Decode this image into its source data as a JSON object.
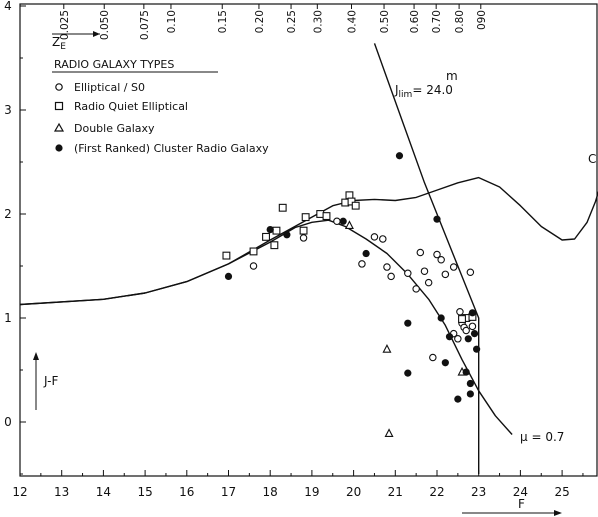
{
  "chart_data": {
    "type": "scatter",
    "xlabel": "F",
    "ylabel": "J-F",
    "xlim": [
      12,
      26
    ],
    "ylim": [
      -0.5,
      4
    ],
    "x_ticks": [
      "12",
      "13",
      "14",
      "15",
      "16",
      "17",
      "18",
      "19",
      "20",
      "21",
      "22",
      "23",
      "24",
      "25"
    ],
    "y_ticks": [
      "0",
      "1",
      "2",
      "3",
      "4"
    ],
    "top_axis": {
      "label": "Z",
      "label_sub": "E",
      "ticks": [
        {
          "label": "0.025",
          "f": 13.05
        },
        {
          "label": "0.050",
          "f": 14.02
        },
        {
          "label": "0.075",
          "f": 14.97
        },
        {
          "label": "0.10",
          "f": 15.62
        },
        {
          "label": "0.15",
          "f": 16.85
        },
        {
          "label": "0.20",
          "f": 17.73
        },
        {
          "label": "0.25",
          "f": 18.5
        },
        {
          "label": "0.30",
          "f": 19.13
        },
        {
          "label": "0.40",
          "f": 19.95
        },
        {
          "label": "0.50",
          "f": 20.73
        },
        {
          "label": "0.60",
          "f": 21.45
        },
        {
          "label": "0.70",
          "f": 21.98
        },
        {
          "label": "0.80",
          "f": 22.53
        },
        {
          "label": "090",
          "f": 23.05
        }
      ]
    },
    "legend": {
      "title": "RADIO GALAXY TYPES",
      "entries": [
        {
          "symbol": "open-circle",
          "label": "Elliptical / S0"
        },
        {
          "symbol": "open-square",
          "label": "Radio Quiet Elliptical"
        },
        {
          "symbol": "open-triangle",
          "label": "Double Galaxy"
        },
        {
          "symbol": "filled-circle",
          "label": "(First Ranked) Cluster Radio Galaxy"
        }
      ]
    },
    "annotations": {
      "jlim_main": "J",
      "jlim_sub": "lim",
      "jlim_value": "= 24.0",
      "jlim_sup": "m",
      "c_label": "C",
      "mu_label": "μ = 0.7"
    },
    "series": [
      {
        "name": "Elliptical / S0",
        "symbol": "open-circle",
        "points": [
          [
            17.6,
            1.5
          ],
          [
            18.8,
            1.77
          ],
          [
            19.6,
            1.93
          ],
          [
            20.2,
            1.52
          ],
          [
            20.5,
            1.78
          ],
          [
            20.7,
            1.76
          ],
          [
            20.8,
            1.49
          ],
          [
            20.9,
            1.4
          ],
          [
            21.3,
            1.43
          ],
          [
            21.5,
            1.28
          ],
          [
            21.6,
            1.63
          ],
          [
            21.7,
            1.45
          ],
          [
            21.8,
            1.34
          ],
          [
            21.9,
            0.62
          ],
          [
            22.0,
            1.61
          ],
          [
            22.1,
            1.56
          ],
          [
            22.2,
            1.42
          ],
          [
            22.4,
            1.49
          ],
          [
            22.4,
            0.85
          ],
          [
            22.5,
            0.8
          ],
          [
            22.55,
            1.06
          ],
          [
            22.6,
            0.95
          ],
          [
            22.65,
            0.91
          ],
          [
            22.7,
            0.88
          ],
          [
            22.8,
            1.44
          ],
          [
            22.75,
            1.0
          ],
          [
            22.85,
            0.92
          ]
        ]
      },
      {
        "name": "Radio Quiet Elliptical",
        "symbol": "open-square",
        "points": [
          [
            16.95,
            1.6
          ],
          [
            17.6,
            1.64
          ],
          [
            17.9,
            1.78
          ],
          [
            18.1,
            1.7
          ],
          [
            18.15,
            1.84
          ],
          [
            18.3,
            2.06
          ],
          [
            18.8,
            1.84
          ],
          [
            18.85,
            1.97
          ],
          [
            19.2,
            2.0
          ],
          [
            19.35,
            1.98
          ],
          [
            19.8,
            2.11
          ],
          [
            19.9,
            2.18
          ],
          [
            19.95,
            2.12
          ],
          [
            20.05,
            2.08
          ],
          [
            22.7,
            1.0
          ],
          [
            22.85,
            1.01
          ],
          [
            22.6,
            0.99
          ]
        ]
      },
      {
        "name": "Double Galaxy",
        "symbol": "open-triangle",
        "points": [
          [
            19.9,
            1.89
          ],
          [
            20.8,
            0.7
          ],
          [
            20.85,
            -0.11
          ],
          [
            22.6,
            0.48
          ]
        ]
      },
      {
        "name": "(First Ranked) Cluster Radio Galaxy",
        "symbol": "filled-circle",
        "points": [
          [
            17.0,
            1.4
          ],
          [
            18.0,
            1.85
          ],
          [
            18.4,
            1.8
          ],
          [
            19.75,
            1.93
          ],
          [
            20.3,
            1.62
          ],
          [
            21.1,
            2.56
          ],
          [
            21.3,
            0.95
          ],
          [
            21.3,
            0.47
          ],
          [
            22.0,
            1.95
          ],
          [
            22.1,
            1.0
          ],
          [
            22.2,
            0.57
          ],
          [
            22.3,
            0.82
          ],
          [
            22.5,
            0.22
          ],
          [
            22.7,
            0.48
          ],
          [
            22.8,
            0.37
          ],
          [
            22.8,
            0.27
          ],
          [
            22.85,
            1.05
          ],
          [
            22.75,
            0.8
          ],
          [
            22.9,
            0.85
          ],
          [
            22.95,
            0.7
          ]
        ]
      }
    ],
    "curves": [
      {
        "name": "C",
        "points": [
          [
            12,
            1.13
          ],
          [
            14,
            1.18
          ],
          [
            15,
            1.24
          ],
          [
            16,
            1.35
          ],
          [
            17,
            1.52
          ],
          [
            18,
            1.75
          ],
          [
            19,
            1.97
          ],
          [
            19.5,
            2.08
          ],
          [
            20,
            2.13
          ],
          [
            20.5,
            2.14
          ],
          [
            21,
            2.13
          ],
          [
            21.5,
            2.16
          ],
          [
            22,
            2.23
          ],
          [
            22.5,
            2.3
          ],
          [
            23,
            2.35
          ],
          [
            23.5,
            2.26
          ],
          [
            24,
            2.08
          ],
          [
            24.5,
            1.88
          ],
          [
            25,
            1.75
          ],
          [
            25.3,
            1.76
          ],
          [
            25.6,
            1.92
          ],
          [
            25.8,
            2.12
          ],
          [
            25.9,
            2.25
          ]
        ]
      },
      {
        "name": "μ = 0.7",
        "points": [
          [
            12,
            1.13
          ],
          [
            14,
            1.18
          ],
          [
            15,
            1.24
          ],
          [
            16,
            1.35
          ],
          [
            17,
            1.52
          ],
          [
            18,
            1.73
          ],
          [
            18.6,
            1.87
          ],
          [
            19,
            1.92
          ],
          [
            19.4,
            1.94
          ],
          [
            19.8,
            1.88
          ],
          [
            20.3,
            1.76
          ],
          [
            20.8,
            1.62
          ],
          [
            21.3,
            1.42
          ],
          [
            21.8,
            1.18
          ],
          [
            22.2,
            0.93
          ],
          [
            22.6,
            0.6
          ],
          [
            23,
            0.3
          ],
          [
            23.4,
            0.06
          ],
          [
            23.8,
            -0.12
          ]
        ]
      },
      {
        "name": "J_lim",
        "points": [
          [
            20.5,
            3.64
          ],
          [
            21.2,
            2.86
          ],
          [
            21.7,
            2.3
          ],
          [
            22.2,
            1.8
          ],
          [
            22.6,
            1.4
          ],
          [
            23.0,
            1.0
          ],
          [
            23.0,
            -0.5
          ]
        ]
      }
    ]
  }
}
